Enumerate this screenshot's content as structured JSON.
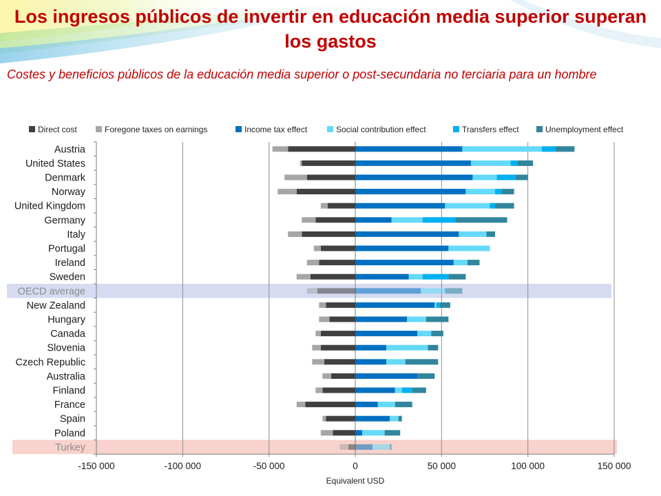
{
  "slide": {
    "title": "Los ingresos públicos de invertir en educación media superior superan los gastos",
    "subtitle": "Costes y beneficios públicos de la educación media superior o post-secundaria no terciaria para un hombre"
  },
  "colors": {
    "title": "#c00000",
    "highlight_oecd": "#d6dbf2",
    "highlight_turkey": "#f8d2cc"
  },
  "chart_data": {
    "type": "bar",
    "orientation": "horizontal",
    "stacked": true,
    "xlabel": "Equivalent USD",
    "xlim": [
      -150000,
      150000
    ],
    "xticks": [
      -150000,
      -100000,
      -50000,
      0,
      50000,
      100000,
      150000
    ],
    "xtick_labels": [
      "-150 000",
      "-100 000",
      "-50 000",
      "0",
      "50 000",
      "100 000",
      "150 000"
    ],
    "grid": "vertical",
    "legend_position": "top",
    "highlighted_categories": [
      "OECD average",
      "Turkey"
    ],
    "categories": [
      "Austria",
      "United States",
      "Denmark",
      "Norway",
      "United Kingdom",
      "Germany",
      "Italy",
      "Portugal",
      "Ireland",
      "Sweden",
      "OECD average",
      "New Zealand",
      "Hungary",
      "Canada",
      "Slovenia",
      "Czech Republic",
      "Australia",
      "Finland",
      "France",
      "Spain",
      "Poland",
      "Turkey"
    ],
    "series": [
      {
        "name": "Direct cost",
        "color": "#404040",
        "sign": "negative",
        "values": [
          -39000,
          -31000,
          -28000,
          -34000,
          -16000,
          -23000,
          -31000,
          -20000,
          -21000,
          -26000,
          -22000,
          -17000,
          -15000,
          -20000,
          -20000,
          -18000,
          -14000,
          -19000,
          -29000,
          -17000,
          -13000,
          -4000
        ]
      },
      {
        "name": "Foregone taxes on earnings",
        "color": "#a6a6a6",
        "sign": "negative",
        "values": [
          -9000,
          -1000,
          -13000,
          -11000,
          -4000,
          -8000,
          -8000,
          -4000,
          -7000,
          -8000,
          -6000,
          -4000,
          -6000,
          -3000,
          -5000,
          -7000,
          -5000,
          -4000,
          -5000,
          -2000,
          -7000,
          -5000
        ]
      },
      {
        "name": "Income tax effect",
        "color": "#0070c0",
        "sign": "positive",
        "values": [
          62000,
          67000,
          68000,
          64000,
          52000,
          21000,
          60000,
          54000,
          57000,
          31000,
          38000,
          46000,
          30000,
          36000,
          18000,
          18000,
          36000,
          23000,
          13000,
          20000,
          4000,
          10000
        ]
      },
      {
        "name": "Social contribution effect",
        "color": "#66d9f9",
        "sign": "positive",
        "values": [
          46000,
          23000,
          14000,
          17000,
          26000,
          18000,
          16000,
          24000,
          8000,
          8000,
          14000,
          1000,
          11000,
          8000,
          24000,
          11000,
          0,
          4000,
          10000,
          5000,
          13000,
          10000
        ]
      },
      {
        "name": "Transfers effect",
        "color": "#00b0f0",
        "sign": "positive",
        "values": [
          8000,
          4000,
          11000,
          4000,
          3000,
          19000,
          0,
          0,
          0,
          15000,
          0,
          2000,
          0,
          0,
          0,
          0,
          0,
          6000,
          0,
          0,
          0,
          0
        ]
      },
      {
        "name": "Unemployment effect",
        "color": "#31859c",
        "sign": "positive",
        "values": [
          11000,
          9000,
          7000,
          7000,
          11000,
          30000,
          5000,
          0,
          7000,
          10000,
          10000,
          6000,
          13000,
          7000,
          6000,
          19000,
          10000,
          8000,
          10000,
          2000,
          9000,
          1000
        ]
      }
    ]
  }
}
